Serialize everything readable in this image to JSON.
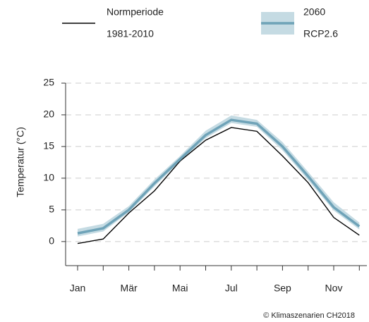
{
  "chart_data": {
    "type": "line",
    "ylabel": "Temperatur (°C)",
    "credit": "© Klimaszenarien CH2018",
    "categories": [
      "Jan",
      null,
      "Mär",
      null,
      "Mai",
      null,
      "Jul",
      null,
      "Sep",
      null,
      "Nov",
      null
    ],
    "ylim": [
      -3.8,
      25
    ],
    "yticks": [
      0,
      5,
      10,
      15,
      20,
      25
    ],
    "grid": true,
    "series": [
      {
        "name": [
          "Normperiode",
          "1981-2010"
        ],
        "color": "#000000",
        "values": [
          -0.3,
          0.4,
          4.5,
          8.0,
          12.7,
          16.0,
          18.0,
          17.4,
          13.5,
          9.3,
          3.8,
          1.0
        ]
      },
      {
        "name": [
          "2060",
          "RCP2.6"
        ],
        "color": "#6fa3b8",
        "band_color": "#c5dbe3",
        "values": [
          1.3,
          2.1,
          5.0,
          9.2,
          13.0,
          16.8,
          19.2,
          18.6,
          15.0,
          10.3,
          5.4,
          2.4
        ],
        "low": [
          0.8,
          1.6,
          4.6,
          8.7,
          12.6,
          16.3,
          18.7,
          18.1,
          14.4,
          9.7,
          4.9,
          1.9
        ],
        "high": [
          2.0,
          2.8,
          5.6,
          9.8,
          13.5,
          17.5,
          19.9,
          19.2,
          15.7,
          11.0,
          6.2,
          3.0
        ]
      }
    ]
  }
}
